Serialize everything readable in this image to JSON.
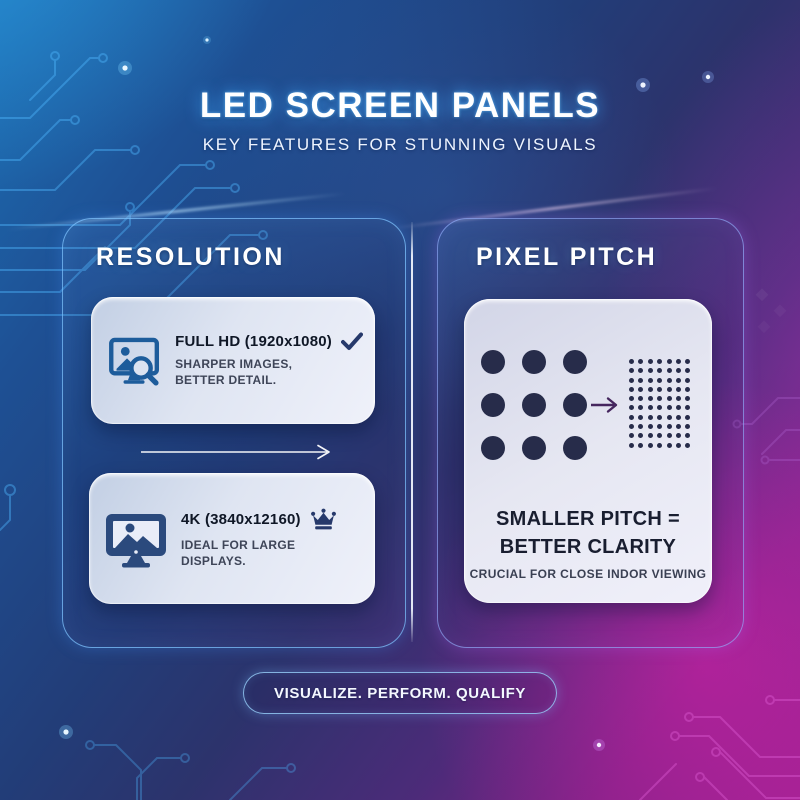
{
  "header": {
    "title": "LED SCREEN PANELS",
    "subtitle": "KEY FEATURES FOR STUNNING VISUALS"
  },
  "resolution": {
    "heading": "RESOLUTION",
    "full_hd": {
      "title": "FULL HD (1920x1080)",
      "badge_icon": "check-icon",
      "desc_line1": "SHARPER IMAGES,",
      "desc_line2": "BETTER DETAIL."
    },
    "uhd": {
      "title": "4K (3840x12160)",
      "badge_icon": "crown-icon",
      "desc": "IDEAL FOR LARGE DISPLAYS."
    }
  },
  "pixel_pitch": {
    "heading": "PIXEL PITCH",
    "large_grid": {
      "rows": 3,
      "cols": 3
    },
    "small_grid": {
      "rows": 10,
      "cols": 7
    },
    "result_line1": "SMALLER PITCH =",
    "result_line2": "BETTER CLARITY",
    "note": "CRUCIAL FOR CLOSE INDOR VIEWING"
  },
  "footer": {
    "tagline": "VISUALIZE. PERFORM. QUALIFY"
  },
  "colors": {
    "bg_blue_top_left": "#1c6fb4",
    "bg_navy_center": "#223d78",
    "bg_magenta_bottom_right": "#9a2190",
    "icon_blue": "#1d5c9b",
    "icon_navy": "#2b4a7d",
    "dot_navy": "#272c4a",
    "badge_navy": "#26396b",
    "mini_card_bg": "#dfe5f2",
    "pitch_arrow_purple": "#45265e"
  }
}
